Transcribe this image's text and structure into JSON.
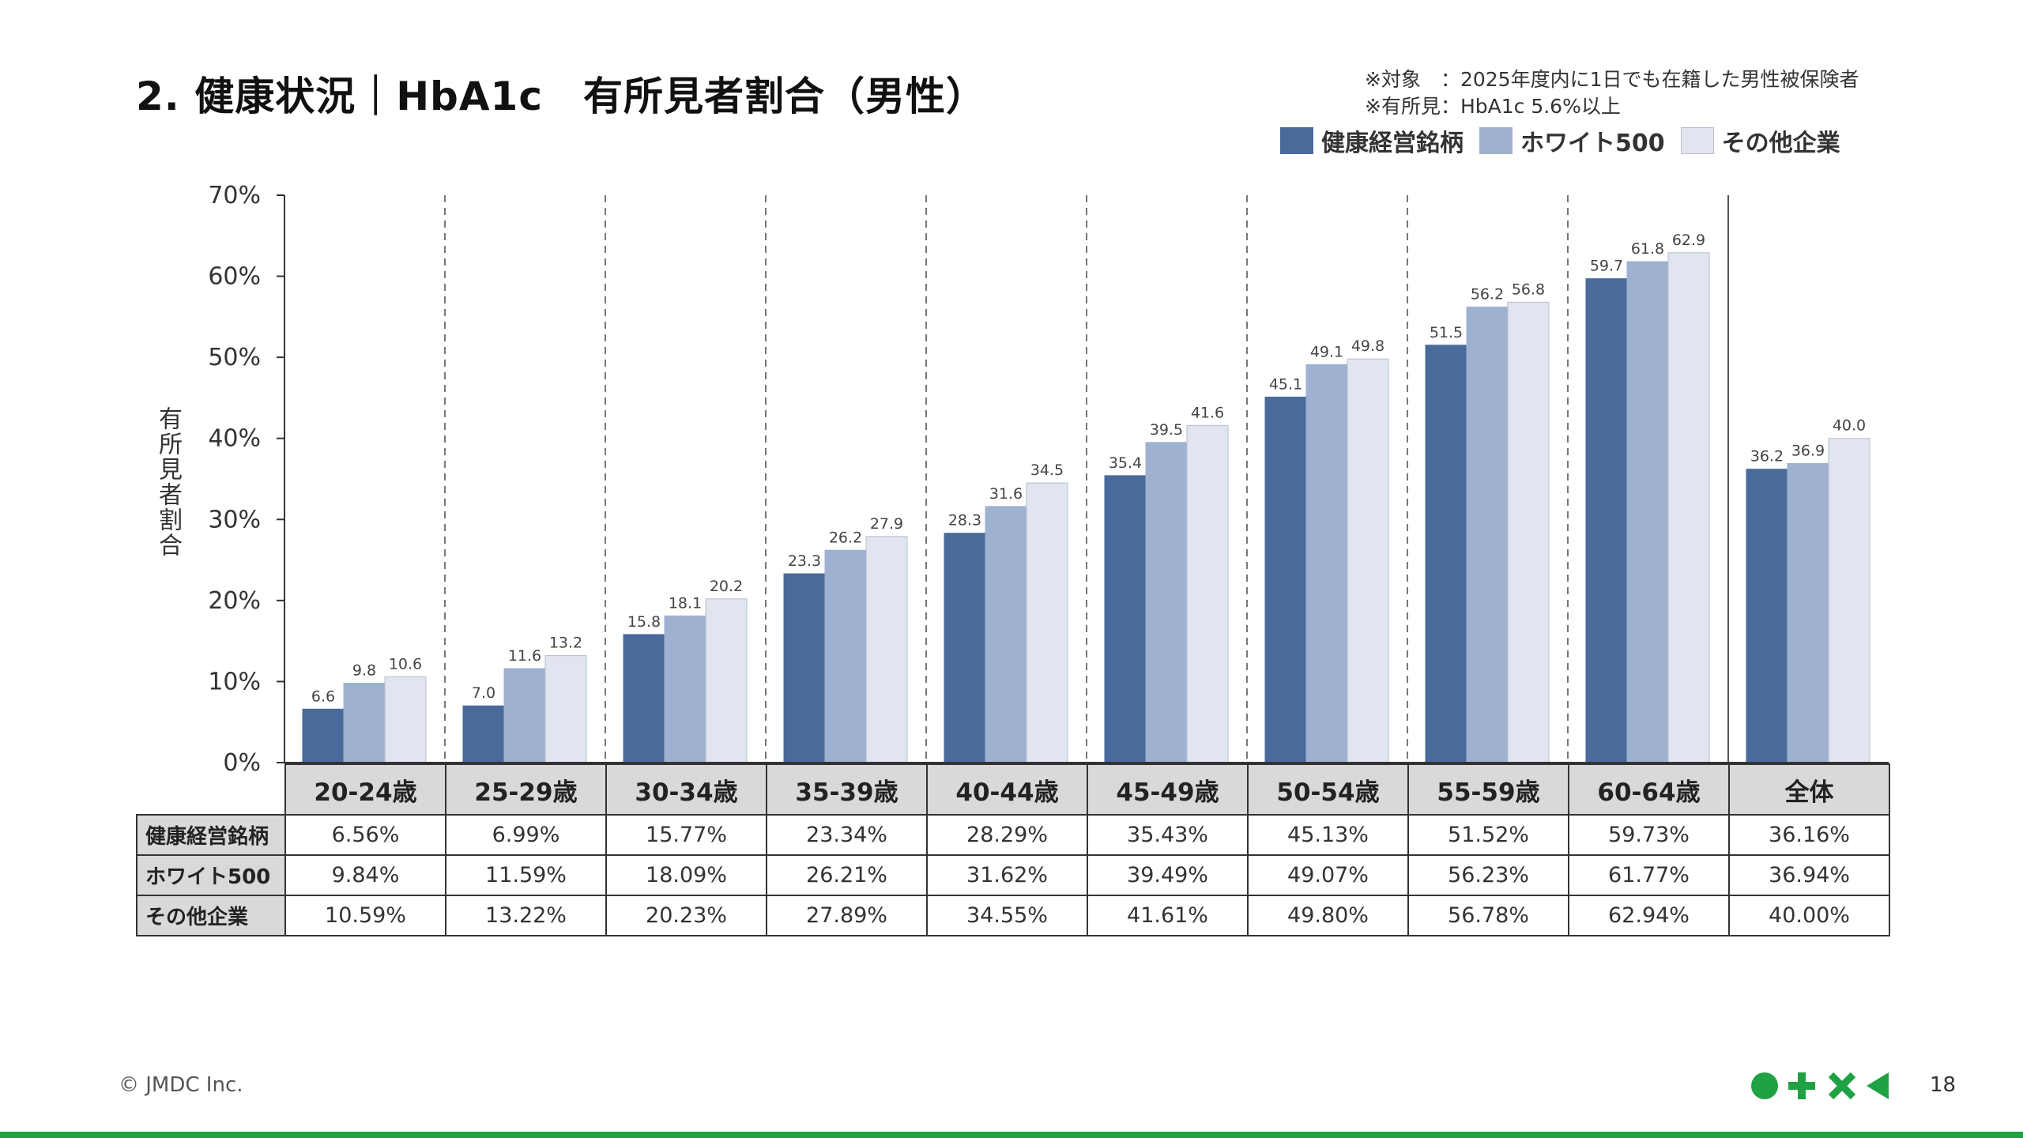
{
  "page": {
    "title": "2. 健康状況｜HbA1c　有所見者割合（男性）",
    "notes": [
      "※対象　：2025年度内に1日でも在籍した男性被保険者",
      "※有所見：HbA1c 5.6%以上"
    ],
    "copyright": "© JMDC Inc.",
    "page_number": "18"
  },
  "legend": [
    {
      "name": "健康経営銘柄",
      "color": "#4a6a9b"
    },
    {
      "name": "ホワイト500",
      "color": "#9fb1d0"
    },
    {
      "name": "その他企業",
      "color": "#e1e5ef"
    }
  ],
  "chart_data": {
    "type": "bar",
    "ylabel": "有所見者割合",
    "ylim": [
      0,
      70
    ],
    "yticks": [
      "0%",
      "10%",
      "20%",
      "30%",
      "40%",
      "50%",
      "60%",
      "70%"
    ],
    "categories": [
      "20-24歳",
      "25-29歳",
      "30-34歳",
      "35-39歳",
      "40-44歳",
      "45-49歳",
      "50-54歳",
      "55-59歳",
      "60-64歳",
      "全体"
    ],
    "series": [
      {
        "name": "健康経営銘柄",
        "color": "#4a6a9b",
        "values": [
          6.6,
          7.0,
          15.8,
          23.3,
          28.3,
          35.4,
          45.1,
          51.5,
          59.7,
          36.2
        ]
      },
      {
        "name": "ホワイト500",
        "color": "#9fb1d0",
        "values": [
          9.8,
          11.6,
          18.1,
          26.2,
          31.6,
          39.5,
          49.1,
          56.2,
          61.8,
          36.9
        ]
      },
      {
        "name": "その他企業",
        "color": "#e1e5ef",
        "values": [
          10.6,
          13.2,
          20.2,
          27.9,
          34.5,
          41.6,
          49.8,
          56.8,
          62.9,
          40.0
        ]
      }
    ],
    "table": {
      "rows": [
        {
          "name": "健康経営銘柄",
          "values": [
            "6.56%",
            "6.99%",
            "15.77%",
            "23.34%",
            "28.29%",
            "35.43%",
            "45.13%",
            "51.52%",
            "59.73%",
            "36.16%"
          ]
        },
        {
          "name": "ホワイト500",
          "values": [
            "9.84%",
            "11.59%",
            "18.09%",
            "26.21%",
            "31.62%",
            "39.49%",
            "49.07%",
            "56.23%",
            "61.77%",
            "36.94%"
          ]
        },
        {
          "name": "その他企業",
          "values": [
            "10.59%",
            "13.22%",
            "20.23%",
            "27.89%",
            "34.55%",
            "41.61%",
            "49.80%",
            "56.78%",
            "62.94%",
            "40.00%"
          ]
        }
      ]
    }
  }
}
